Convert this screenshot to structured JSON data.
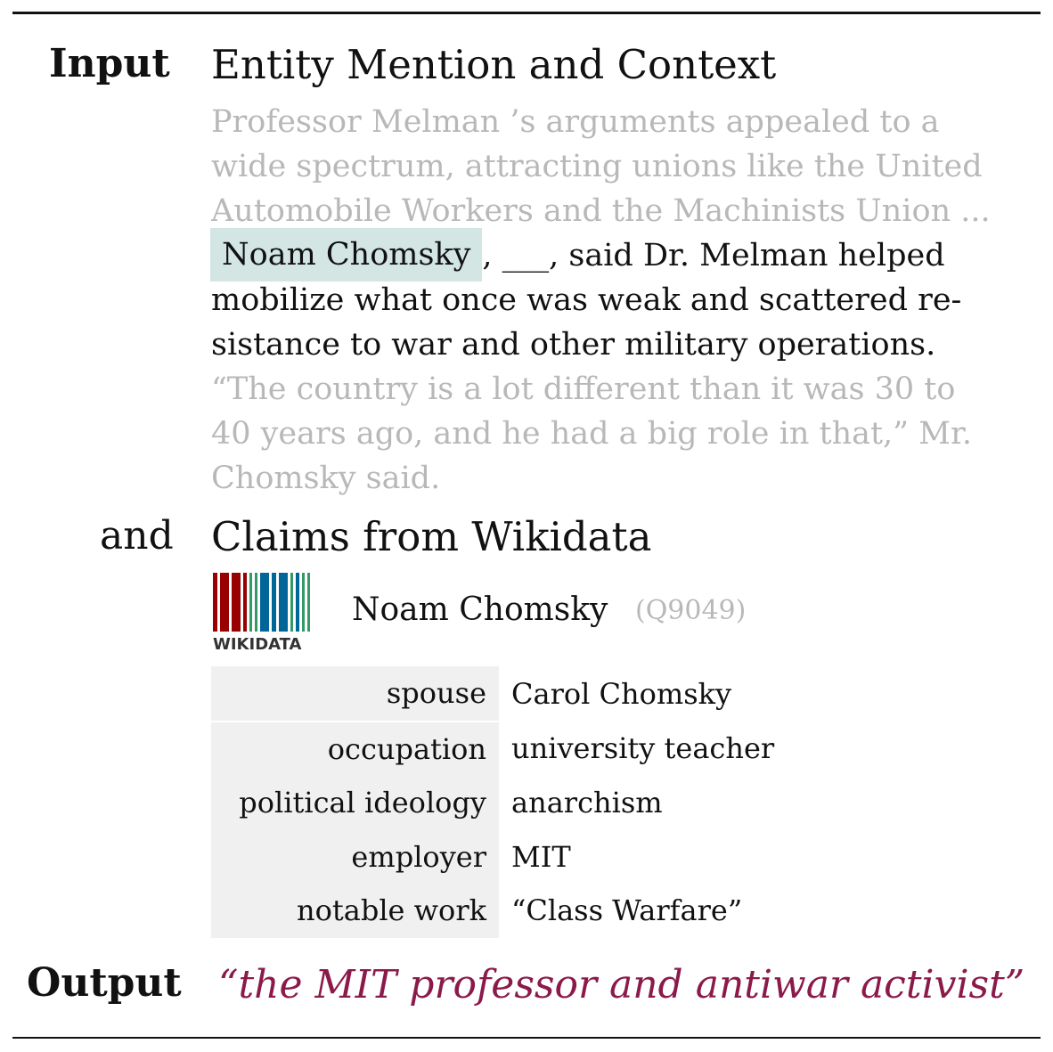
{
  "labels": {
    "input": "Input",
    "and": "and",
    "output": "Output"
  },
  "headings": {
    "context": "Entity Mention and Context",
    "claims": "Claims from Wikidata"
  },
  "context": {
    "before_lines": [
      "Professor Melman ’s arguments appealed to a",
      "wide spectrum, attracting unions like the United",
      "Automobile Workers and the Machinists Union ..."
    ],
    "mention": "Noam Chomsky",
    "mention_line_rest": ", ___, said Dr.  Melman helped",
    "sentence_lines": [
      "mobilize what once was weak and scattered re-",
      "sistance to war and other military operations."
    ],
    "after_lines": [
      "“The country is a lot different than it was 30 to",
      "40 years ago, and he had a big role in that,” Mr.",
      "Chomsky said."
    ]
  },
  "entity": {
    "logo_text": "WIKIDATA",
    "name": "Noam Chomsky",
    "qid": "(Q9049)"
  },
  "claims": [
    {
      "property": "spouse",
      "value": "Carol Chomsky"
    },
    {
      "property": "occupation",
      "value": "university teacher"
    },
    {
      "property": "political ideology",
      "value": "anarchism"
    },
    {
      "property": "employer",
      "value": "MIT"
    },
    {
      "property": "notable work",
      "value": "“Class Warfare”"
    }
  ],
  "output": {
    "text": "“the MIT professor and antiwar activist”"
  },
  "colors": {
    "faded_text": "#b8b8b8",
    "mention_highlight": "#d3e6e3",
    "claim_property_bg": "#f0f0f0",
    "output_text": "#8b1a4a",
    "logo_red": "#990000",
    "logo_green": "#339966",
    "logo_blue": "#006699"
  }
}
